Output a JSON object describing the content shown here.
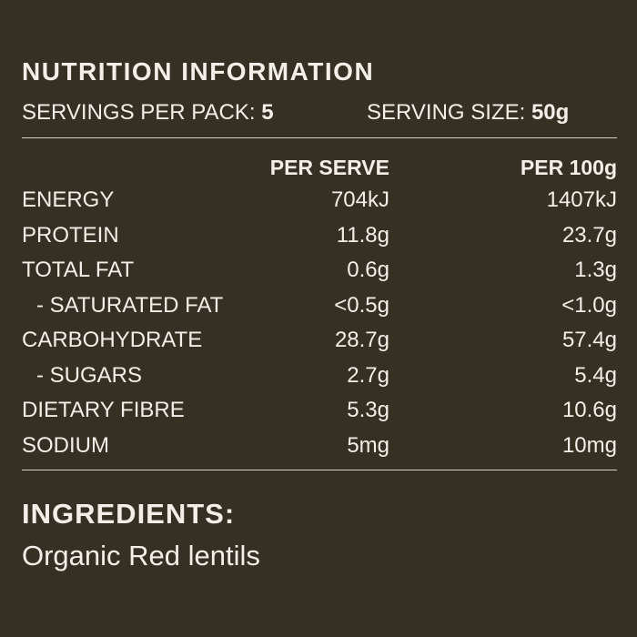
{
  "label": {
    "title": "NUTRITION INFORMATION",
    "servings_per_pack_label": "SERVINGS PER PACK:",
    "servings_per_pack_value": "5",
    "serving_size_label": "SERVING SIZE:",
    "serving_size_value": "50g",
    "columns": {
      "per_serve": "PER SERVE",
      "per_100g": "PER 100g"
    },
    "rows": [
      {
        "name": "ENERGY",
        "per_serve": "704kJ",
        "per_100g": "1407kJ"
      },
      {
        "name": "PROTEIN",
        "per_serve": "11.8g",
        "per_100g": "23.7g"
      },
      {
        "name": "TOTAL FAT",
        "per_serve": "0.6g",
        "per_100g": "1.3g"
      },
      {
        "name": "- SATURATED FAT",
        "per_serve": "<0.5g",
        "per_100g": "<1.0g"
      },
      {
        "name": "CARBOHYDRATE",
        "per_serve": "28.7g",
        "per_100g": "57.4g"
      },
      {
        "name": "- SUGARS",
        "per_serve": "2.7g",
        "per_100g": "5.4g"
      },
      {
        "name": "DIETARY FIBRE",
        "per_serve": "5.3g",
        "per_100g": "10.6g"
      },
      {
        "name": "SODIUM",
        "per_serve": "5mg",
        "per_100g": "10mg"
      }
    ],
    "ingredients_title": "INGREDIENTS:",
    "ingredients_text": "Organic Red lentils"
  },
  "colors": {
    "background": "#362f23",
    "text": "#f2efe8",
    "rule": "#d7d2c8"
  }
}
